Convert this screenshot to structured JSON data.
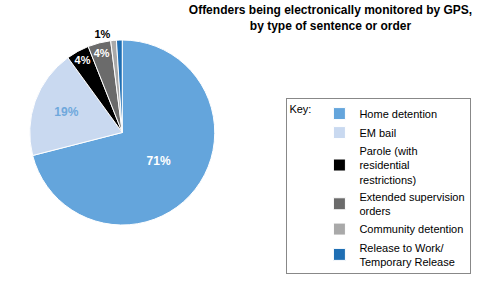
{
  "chart_data": {
    "type": "pie",
    "title": "Offenders being electronically monitored by GPS, by type of sentence or order",
    "legend_title": "Key:",
    "categories": [
      "Home detention",
      "EM bail",
      "Parole (with residential restrictions)",
      "Extended supervision orders",
      "Community detention",
      "Release to Work/ Temporary Release"
    ],
    "values": [
      71,
      19,
      4,
      4,
      1,
      1
    ],
    "value_labels": [
      "71%",
      "19%",
      "4%",
      "4%",
      "1%",
      null
    ],
    "colors": [
      "#64a5dc",
      "#c9d9f0",
      "#000000",
      "#6b6b6b",
      "#a9a9a9",
      "#1f6fb4"
    ],
    "data_labels": true,
    "legend": "right"
  }
}
